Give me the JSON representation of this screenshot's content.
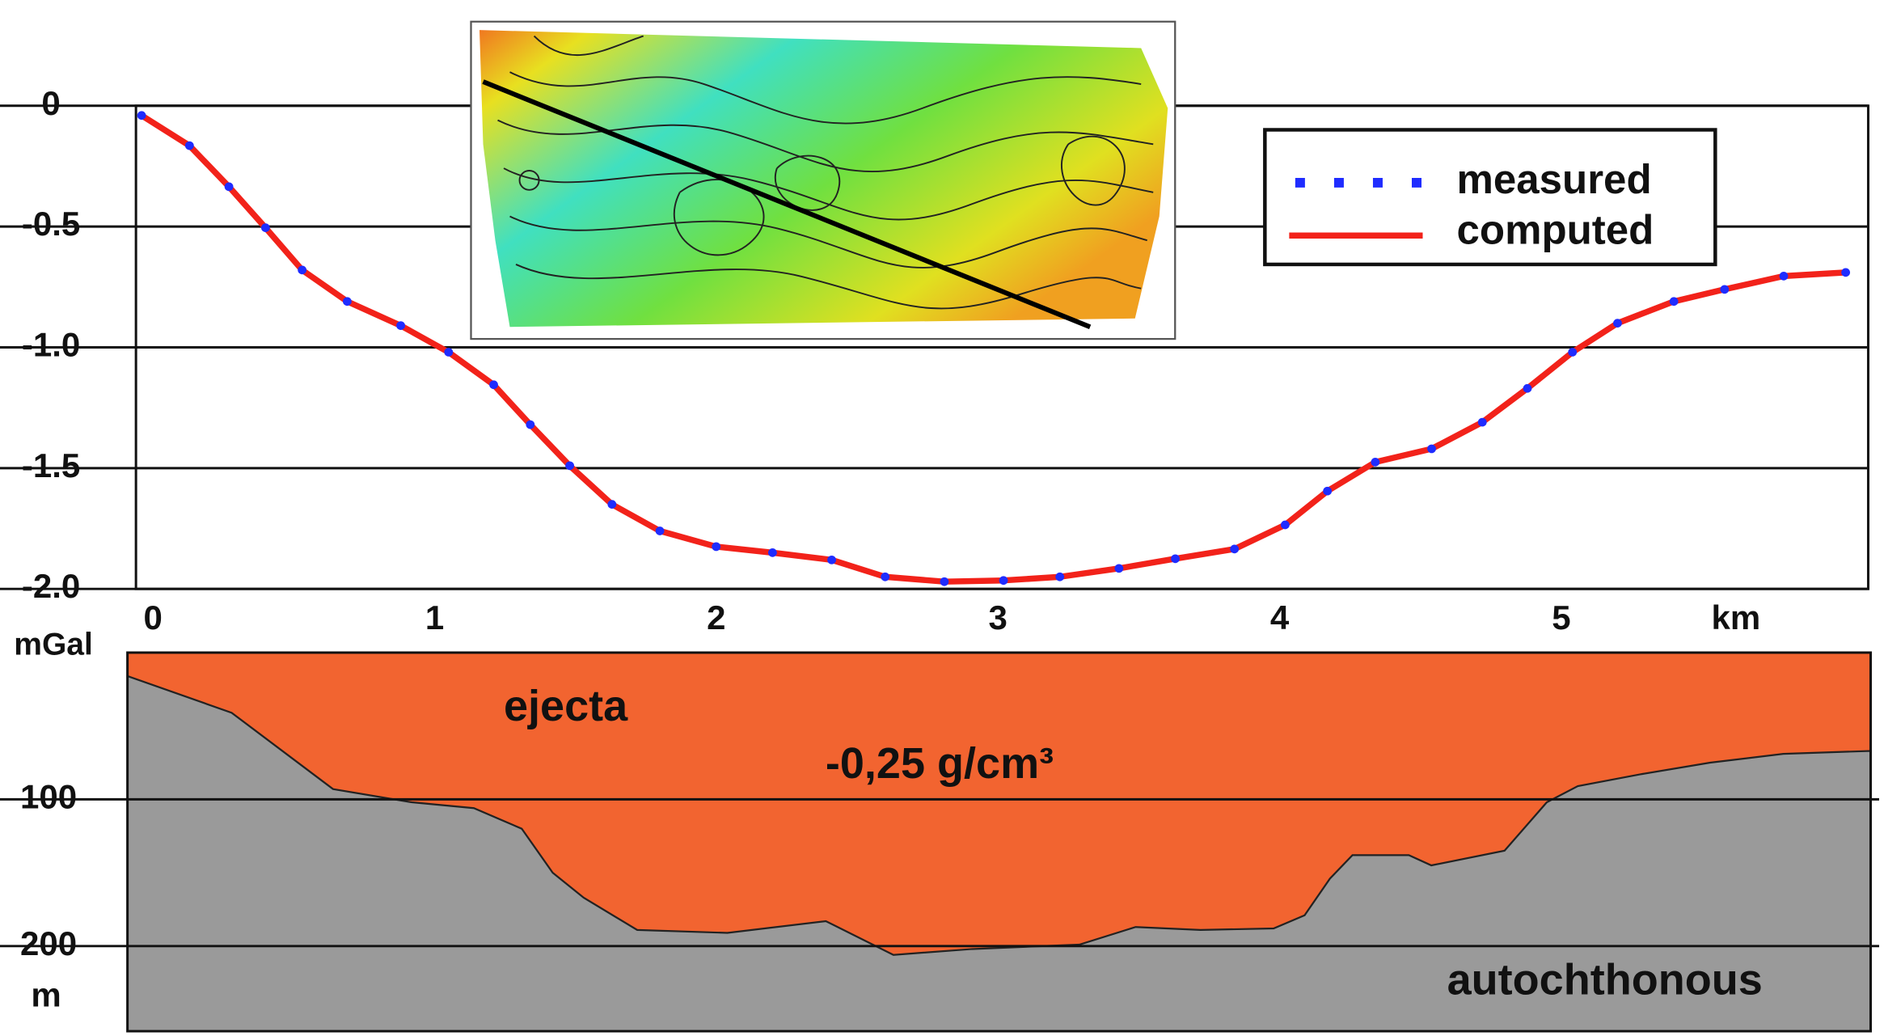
{
  "chart_data": [
    {
      "type": "line",
      "x": [
        0.02,
        0.19,
        0.33,
        0.46,
        0.59,
        0.75,
        0.94,
        1.11,
        1.27,
        1.4,
        1.54,
        1.69,
        1.86,
        2.06,
        2.26,
        2.47,
        2.66,
        2.87,
        3.08,
        3.28,
        3.49,
        3.69,
        3.9,
        4.08,
        4.23,
        4.4,
        4.6,
        4.78,
        4.94,
        5.1,
        5.26,
        5.46,
        5.64,
        5.85,
        6.07
      ],
      "series": [
        {
          "name": "measured",
          "color": "#1f2cff",
          "values": [
            -0.04,
            -0.165,
            -0.335,
            -0.505,
            -0.68,
            -0.81,
            -0.91,
            -1.02,
            -1.155,
            -1.32,
            -1.49,
            -1.65,
            -1.76,
            -1.825,
            -1.85,
            -1.88,
            -1.95,
            -1.97,
            -1.965,
            -1.95,
            -1.915,
            -1.875,
            -1.835,
            -1.735,
            -1.595,
            -1.475,
            -1.42,
            -1.31,
            -1.17,
            -1.02,
            -0.9,
            -0.81,
            -0.76,
            -0.705,
            -0.69
          ]
        },
        {
          "name": "computed",
          "color": "#f2221a",
          "values": [
            -0.04,
            -0.165,
            -0.335,
            -0.505,
            -0.68,
            -0.81,
            -0.91,
            -1.02,
            -1.155,
            -1.32,
            -1.49,
            -1.65,
            -1.76,
            -1.825,
            -1.85,
            -1.88,
            -1.95,
            -1.97,
            -1.965,
            -1.95,
            -1.915,
            -1.875,
            -1.835,
            -1.735,
            -1.595,
            -1.475,
            -1.42,
            -1.31,
            -1.17,
            -1.02,
            -0.9,
            -0.81,
            -0.76,
            -0.705,
            -0.69
          ]
        }
      ],
      "xlim": [
        0,
        6.15
      ],
      "ylim": [
        -2,
        0
      ],
      "xticks": [
        0,
        1,
        2,
        3,
        4,
        5
      ],
      "yticks": [
        0,
        -0.5,
        {
          "value": -1,
          "label": "-1.0"
        },
        -1.5,
        {
          "value": -2,
          "label": "-2.0"
        }
      ],
      "xlabel": "km",
      "ylabel": "mGal",
      "grid": true,
      "legend": "upper right"
    },
    {
      "type": "area",
      "x": [
        -0.03,
        0.34,
        0.7,
        0.98,
        1.2,
        1.37,
        1.48,
        1.59,
        1.78,
        2.1,
        2.45,
        2.69,
        2.97,
        3.35,
        3.55,
        3.78,
        4.04,
        4.15,
        4.24,
        4.32,
        4.52,
        4.6,
        4.86,
        5.01,
        5.12,
        5.34,
        5.59,
        5.85,
        6.16
      ],
      "values": [
        16,
        41,
        93,
        102,
        106,
        120,
        150,
        167,
        189,
        191,
        183,
        206,
        202,
        199,
        187,
        189,
        188,
        179,
        154,
        138,
        138,
        145,
        135,
        102,
        91,
        83,
        75,
        69,
        67
      ],
      "xlim": [
        -0.03,
        6.16
      ],
      "ylim": [
        0,
        258
      ],
      "y_inverted": true,
      "yticks": [
        100,
        200
      ],
      "ylabel": "m",
      "grid": true,
      "fill_colors": [
        "#f26430",
        "#9a9a9a"
      ],
      "annotations": [
        "ejecta",
        "-0,25 g/cm³",
        "autochthonous"
      ]
    }
  ]
}
